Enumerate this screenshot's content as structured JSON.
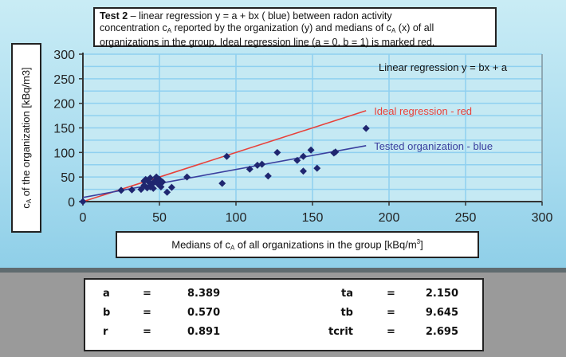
{
  "title": {
    "bold": "Test 2",
    "rest_line1": " – linear regression y = a + bx ( blue) between radon activity",
    "line2a": "concentration c",
    "line2sub": "A",
    "line2b": " reported by the organization (y) and medians of c",
    "line2sub2": "A",
    "line2c": " (x) of all",
    "line3": "organizations in the group. Ideal regression line (a = 0, b = 1) is marked red."
  },
  "chart_data": {
    "type": "scatter",
    "xlabel": "Medians of cA of all organizations in the group [kBq/m3]",
    "ylabel": "cA of the organization [kBq/m3]",
    "xlim": [
      0,
      300
    ],
    "ylim": [
      0,
      300
    ],
    "xticks": [
      "0",
      "50",
      "100",
      "150",
      "200",
      "250",
      "300"
    ],
    "yticks": [
      "0",
      "50",
      "100",
      "150",
      "200",
      "250",
      "300"
    ],
    "grid": true,
    "annotation": "Linear regression y = bx + a",
    "points": [
      [
        0,
        0
      ],
      [
        25,
        23
      ],
      [
        32,
        24
      ],
      [
        38,
        25
      ],
      [
        40,
        33
      ],
      [
        41,
        45
      ],
      [
        42,
        28
      ],
      [
        43,
        40
      ],
      [
        44,
        48
      ],
      [
        45,
        35
      ],
      [
        46,
        27
      ],
      [
        47,
        42
      ],
      [
        48,
        50
      ],
      [
        49,
        36
      ],
      [
        50,
        45
      ],
      [
        51,
        30
      ],
      [
        52,
        40
      ],
      [
        44,
        30
      ],
      [
        40,
        42
      ],
      [
        55,
        19
      ],
      [
        58,
        29
      ],
      [
        68,
        50
      ],
      [
        91,
        37
      ],
      [
        94,
        92
      ],
      [
        109,
        66
      ],
      [
        114,
        74
      ],
      [
        117,
        76
      ],
      [
        121,
        52
      ],
      [
        127,
        100
      ],
      [
        140,
        84
      ],
      [
        144,
        92
      ],
      [
        144,
        62
      ],
      [
        149,
        105
      ],
      [
        153,
        68
      ],
      [
        164,
        99
      ],
      [
        165,
        101
      ],
      [
        185,
        149
      ]
    ],
    "lines": [
      {
        "name": "Ideal regression - red",
        "color": "#e8413a",
        "a": 0,
        "b": 1,
        "x": [
          0,
          185
        ]
      },
      {
        "name": "Tested organization - blue",
        "color": "#3a3f9e",
        "a": 8.389,
        "b": 0.57,
        "x": [
          0,
          185
        ]
      }
    ],
    "point_color": "#1f2670"
  },
  "results": {
    "rows": [
      {
        "l": "a",
        "eq": "=",
        "v": "8.389",
        "l2": "ta",
        "eq2": "=",
        "v2": "2.150"
      },
      {
        "l": "b",
        "eq": "=",
        "v": "0.570",
        "l2": "tb",
        "eq2": "=",
        "v2": "9.645"
      },
      {
        "l": "r",
        "eq": "=",
        "v": "0.891",
        "l2": "tcrit",
        "eq2": "=",
        "v2": "2.695"
      }
    ]
  }
}
